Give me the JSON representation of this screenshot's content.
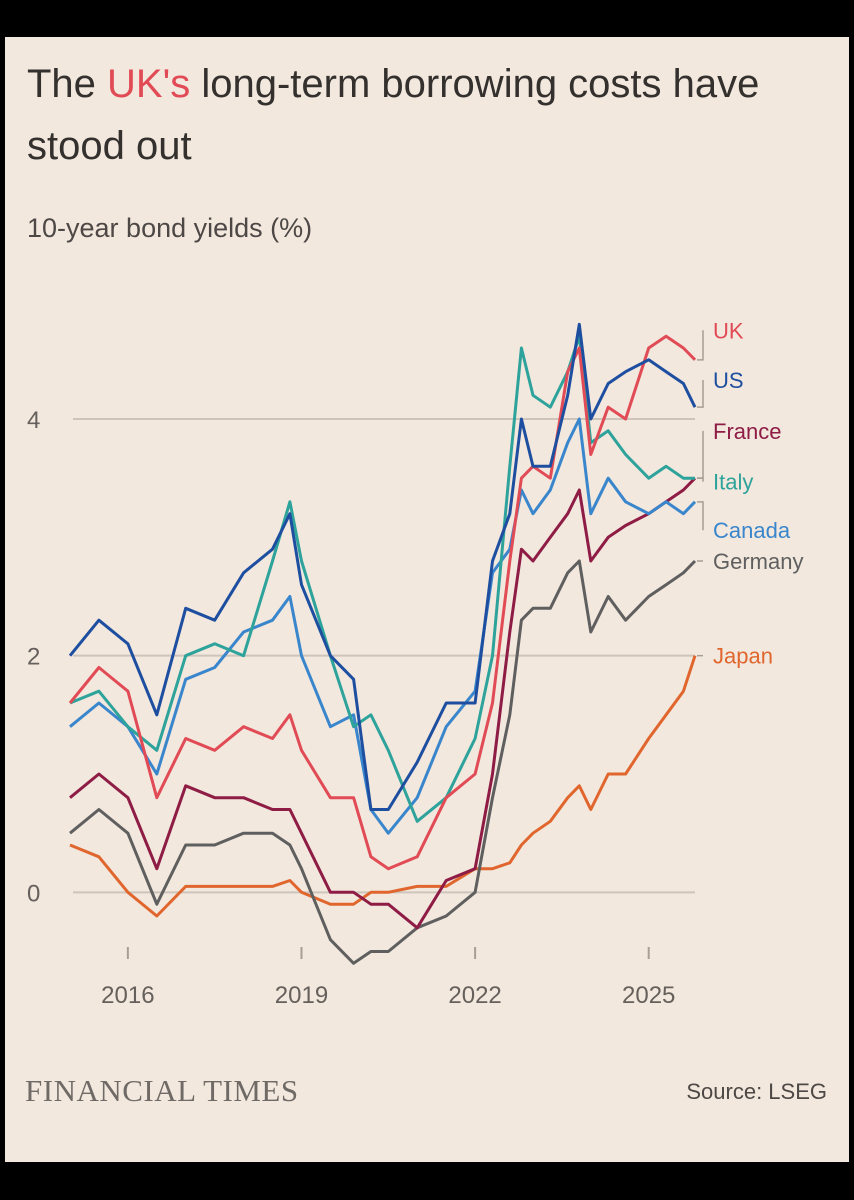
{
  "header": {
    "title_pre": "The ",
    "title_highlight": "UK's",
    "title_post": " long-term borrowing costs have stood out",
    "subtitle": "10-year bond yields (%)"
  },
  "footer": {
    "brand": "FINANCIAL TIMES",
    "source": "Source: LSEG"
  },
  "chart_data": {
    "type": "line",
    "title": "The UK's long-term borrowing costs have stood out",
    "ylabel": "10-year bond yields (%)",
    "xlabel": "",
    "x_range": [
      2015.0,
      2025.8
    ],
    "ylim": [
      -0.8,
      5.2
    ],
    "y_ticks": [
      0,
      2,
      4
    ],
    "y_tick_labels": [
      "0",
      "2",
      "4"
    ],
    "x_ticks": [
      2016,
      2019,
      2022,
      2025
    ],
    "x_tick_labels": [
      "2016",
      "2019",
      "2022",
      "2025"
    ],
    "grid": "horizontal",
    "x": [
      2015.0,
      2015.5,
      2016.0,
      2016.5,
      2017.0,
      2017.5,
      2018.0,
      2018.5,
      2018.8,
      2019.0,
      2019.5,
      2019.9,
      2020.2,
      2020.5,
      2021.0,
      2021.5,
      2022.0,
      2022.3,
      2022.6,
      2022.8,
      2023.0,
      2023.3,
      2023.6,
      2023.8,
      2024.0,
      2024.3,
      2024.6,
      2025.0,
      2025.3,
      2025.6,
      2025.8
    ],
    "series": [
      {
        "name": "UK",
        "color": "#e14b55",
        "values": [
          1.6,
          1.9,
          1.7,
          0.8,
          1.3,
          1.2,
          1.4,
          1.3,
          1.5,
          1.2,
          0.8,
          0.8,
          0.3,
          0.2,
          0.3,
          0.8,
          1.0,
          1.6,
          2.8,
          3.5,
          3.6,
          3.5,
          4.4,
          4.6,
          3.7,
          4.1,
          4.0,
          4.6,
          4.7,
          4.6,
          4.5
        ]
      },
      {
        "name": "US",
        "color": "#1e4ea0",
        "values": [
          2.0,
          2.3,
          2.1,
          1.5,
          2.4,
          2.3,
          2.7,
          2.9,
          3.2,
          2.6,
          2.0,
          1.8,
          0.7,
          0.7,
          1.1,
          1.6,
          1.6,
          2.8,
          3.2,
          4.0,
          3.6,
          3.6,
          4.2,
          4.8,
          4.0,
          4.3,
          4.4,
          4.5,
          4.4,
          4.3,
          4.1
        ]
      },
      {
        "name": "France",
        "color": "#8e1c45",
        "values": [
          0.8,
          1.0,
          0.8,
          0.2,
          0.9,
          0.8,
          0.8,
          0.7,
          0.7,
          0.5,
          0.0,
          0.0,
          -0.1,
          -0.1,
          -0.3,
          0.1,
          0.2,
          1.0,
          2.2,
          2.9,
          2.8,
          3.0,
          3.2,
          3.4,
          2.8,
          3.0,
          3.1,
          3.2,
          3.3,
          3.4,
          3.5
        ]
      },
      {
        "name": "Italy",
        "color": "#2ea39b",
        "values": [
          1.6,
          1.7,
          1.4,
          1.2,
          2.0,
          2.1,
          2.0,
          2.8,
          3.3,
          2.8,
          2.0,
          1.4,
          1.5,
          1.2,
          0.6,
          0.8,
          1.3,
          2.0,
          3.6,
          4.6,
          4.2,
          4.1,
          4.4,
          4.7,
          3.8,
          3.9,
          3.7,
          3.5,
          3.6,
          3.5,
          3.5
        ]
      },
      {
        "name": "Canada",
        "color": "#3a86cc",
        "values": [
          1.4,
          1.6,
          1.4,
          1.0,
          1.8,
          1.9,
          2.2,
          2.3,
          2.5,
          2.0,
          1.4,
          1.5,
          0.7,
          0.5,
          0.8,
          1.4,
          1.7,
          2.7,
          2.9,
          3.4,
          3.2,
          3.4,
          3.8,
          4.0,
          3.2,
          3.5,
          3.3,
          3.2,
          3.3,
          3.2,
          3.3
        ]
      },
      {
        "name": "Germany",
        "color": "#5f5f5f",
        "values": [
          0.5,
          0.7,
          0.5,
          -0.1,
          0.4,
          0.4,
          0.5,
          0.5,
          0.4,
          0.2,
          -0.4,
          -0.6,
          -0.5,
          -0.5,
          -0.3,
          -0.2,
          0.0,
          0.8,
          1.5,
          2.3,
          2.4,
          2.4,
          2.7,
          2.8,
          2.2,
          2.5,
          2.3,
          2.5,
          2.6,
          2.7,
          2.8
        ]
      },
      {
        "name": "Japan",
        "color": "#e0662e",
        "values": [
          0.4,
          0.3,
          0.0,
          -0.2,
          0.05,
          0.05,
          0.05,
          0.05,
          0.1,
          0.0,
          -0.1,
          -0.1,
          0.0,
          0.0,
          0.05,
          0.05,
          0.2,
          0.2,
          0.25,
          0.4,
          0.5,
          0.6,
          0.8,
          0.9,
          0.7,
          1.0,
          1.0,
          1.3,
          1.5,
          1.7,
          2.0
        ]
      }
    ],
    "end_labels": [
      {
        "name": "UK",
        "color": "#e14b55",
        "y": 4.75
      },
      {
        "name": "US",
        "color": "#1e4ea0",
        "y": 4.33
      },
      {
        "name": "France",
        "color": "#8e1c45",
        "y": 3.9
      },
      {
        "name": "Italy",
        "color": "#2ea39b",
        "y": 3.47
      },
      {
        "name": "Canada",
        "color": "#3a86cc",
        "y": 3.06
      },
      {
        "name": "Germany",
        "color": "#5f5f5f",
        "y": 2.8
      },
      {
        "name": "Japan",
        "color": "#e0662e",
        "y": 2.0
      }
    ]
  }
}
